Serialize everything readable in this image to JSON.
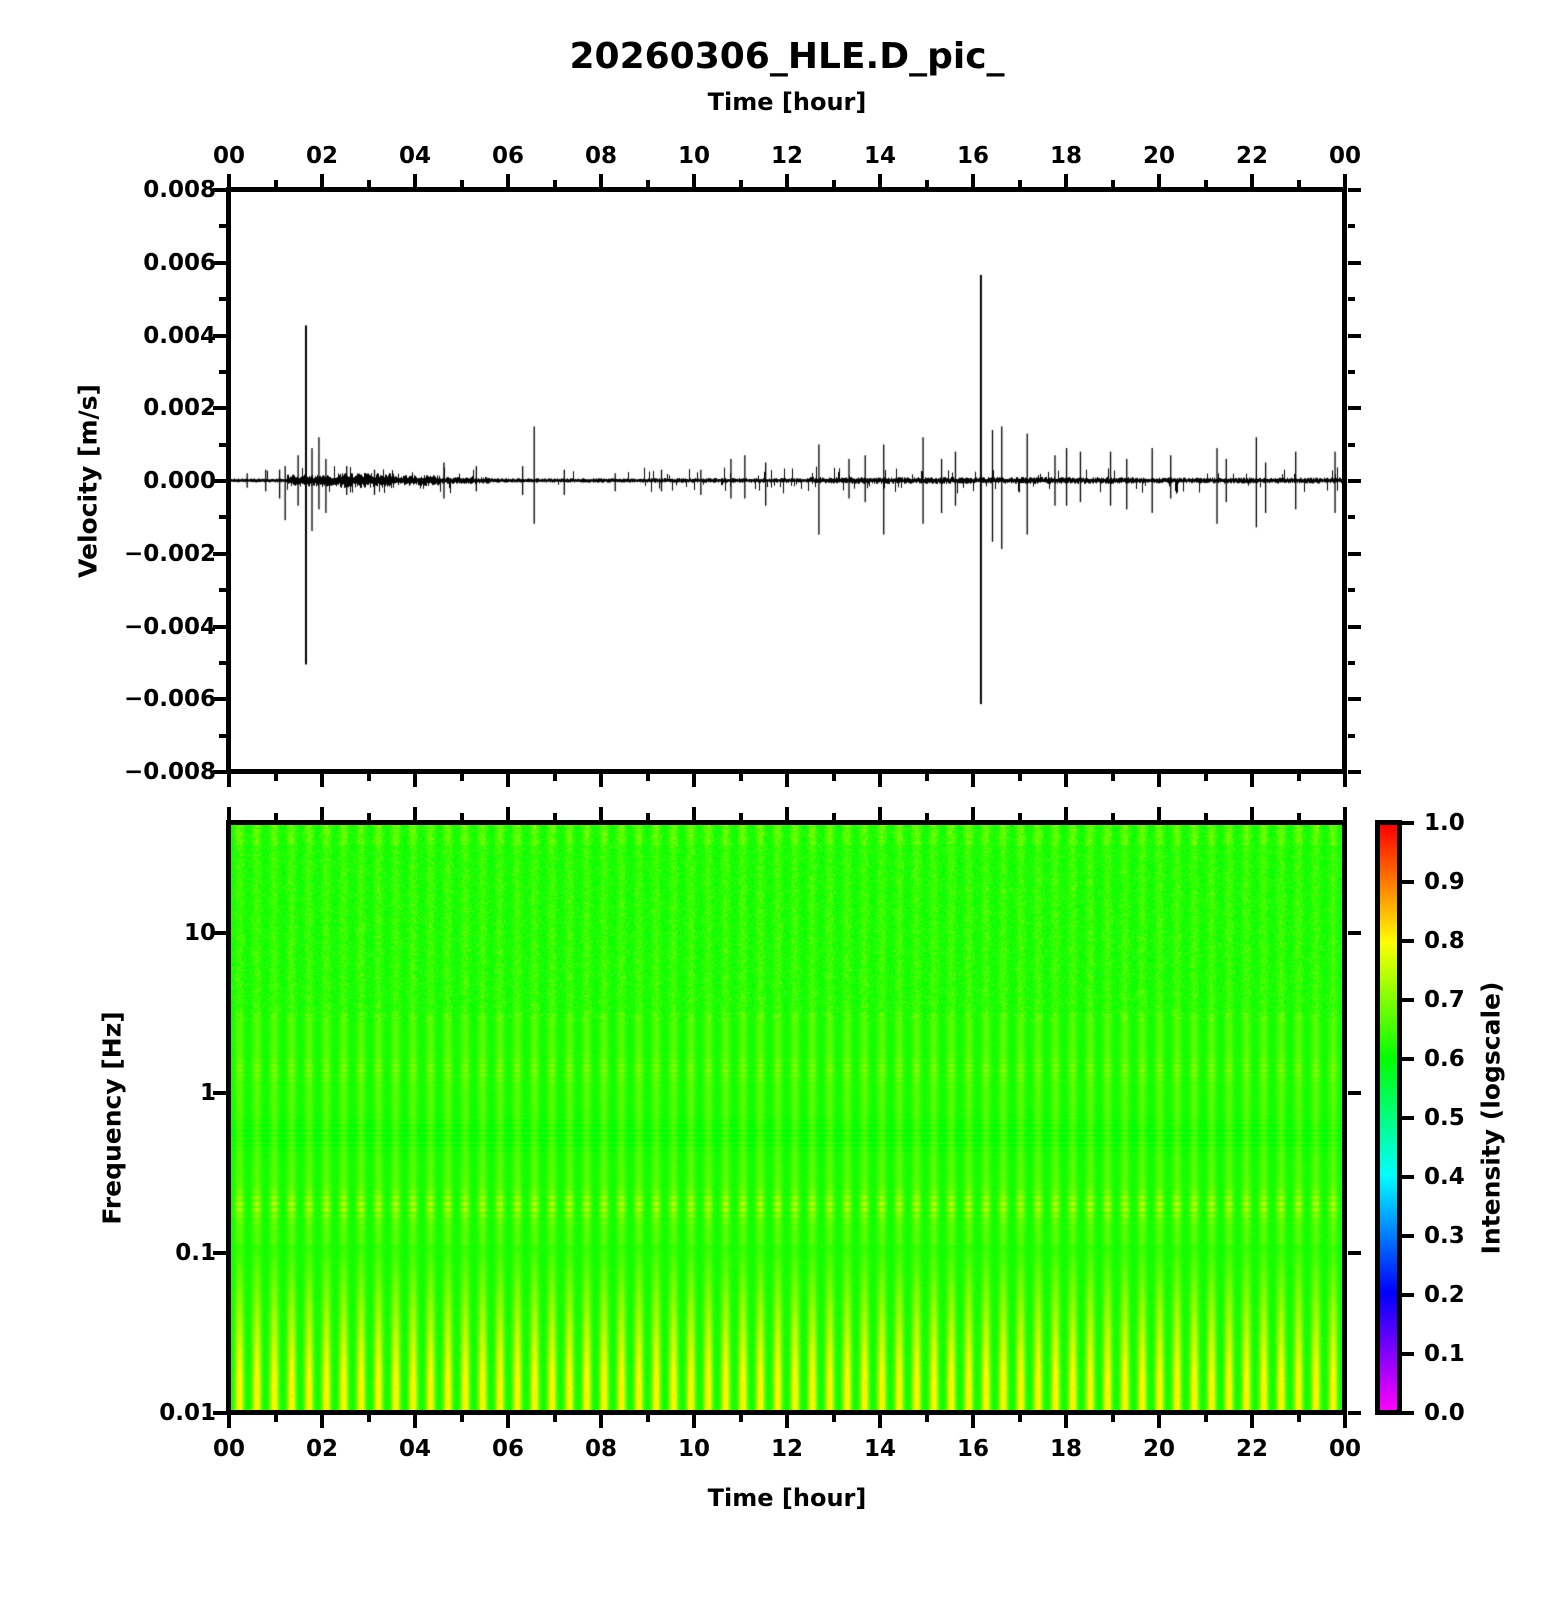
{
  "title": "20260306_HLE.D_pic_",
  "axes": {
    "top_x": {
      "label": "Time [hour]",
      "tick_labels": [
        "00",
        "02",
        "04",
        "06",
        "08",
        "10",
        "12",
        "14",
        "16",
        "18",
        "20",
        "22",
        "00"
      ],
      "tick_hours": [
        0,
        2,
        4,
        6,
        8,
        10,
        12,
        14,
        16,
        18,
        20,
        22,
        24
      ],
      "minor_every_hours": 1
    },
    "bottom_x": {
      "label": "Time [hour]",
      "tick_labels": [
        "00",
        "02",
        "04",
        "06",
        "08",
        "10",
        "12",
        "14",
        "16",
        "18",
        "20",
        "22",
        "00"
      ],
      "tick_hours": [
        0,
        2,
        4,
        6,
        8,
        10,
        12,
        14,
        16,
        18,
        20,
        22,
        24
      ],
      "minor_every_hours": 1
    },
    "wave_y": {
      "label": "Velocity [m/s]",
      "tick_labels": [
        "0.008",
        "0.006",
        "0.004",
        "0.002",
        "0.000",
        "−0.002",
        "−0.004",
        "−0.006",
        "−0.008"
      ],
      "tick_values": [
        0.008,
        0.006,
        0.004,
        0.002,
        0.0,
        -0.002,
        -0.004,
        -0.006,
        -0.008
      ],
      "minor_step": 0.001
    },
    "spec_y": {
      "label": "Frequency [Hz]",
      "tick_labels": [
        "10",
        "1",
        "0.1",
        "0.01"
      ],
      "tick_values_hz": [
        10,
        1,
        0.1,
        0.01
      ],
      "scale": "log"
    }
  },
  "colorbar": {
    "label": "Intensity (logscale)",
    "tick_labels": [
      "1.0",
      "0.9",
      "0.8",
      "0.7",
      "0.6",
      "0.5",
      "0.4",
      "0.3",
      "0.2",
      "0.1",
      "0.0"
    ],
    "tick_values": [
      1.0,
      0.9,
      0.8,
      0.7,
      0.6,
      0.5,
      0.4,
      0.3,
      0.2,
      0.1,
      0.0
    ],
    "min": 0.0,
    "max": 1.0,
    "colormap": "rainbow",
    "colormap_stops": {
      "0.0": "#ff00ff",
      "0.2": "#0000ff",
      "0.4": "#00ffff",
      "0.6": "#00ff00",
      "0.8": "#ffff00",
      "1.0": "#ff0000"
    }
  },
  "chart_data": [
    {
      "type": "line",
      "name": "seismic-waveform",
      "title": "20260306_HLE.D_pic_",
      "xlabel": "Time [hour]",
      "ylabel": "Velocity [m/s]",
      "xlim": [
        0,
        24
      ],
      "ylim": [
        -0.008,
        0.008
      ],
      "x_tick_step_hours": 2,
      "line_color": "#000000",
      "baseline_noise_mps": 3e-05,
      "noise_envelope_segments_h_h_amp": [
        [
          0.0,
          1.2,
          4e-05
        ],
        [
          1.2,
          2.3,
          0.00012
        ],
        [
          2.3,
          3.5,
          0.00015
        ],
        [
          3.5,
          4.5,
          0.00011
        ],
        [
          4.5,
          5.6,
          7e-05
        ],
        [
          5.6,
          9.0,
          4.5e-05
        ],
        [
          9.0,
          12.5,
          5e-05
        ],
        [
          12.5,
          19.5,
          7e-05
        ],
        [
          19.5,
          24.0,
          6e-05
        ]
      ],
      "spikes_hour_up_down_mps": [
        [
          0.35,
          0.0002,
          0.0002
        ],
        [
          0.75,
          0.0003,
          0.0003
        ],
        [
          1.05,
          0.0003,
          0.0005
        ],
        [
          1.17,
          0.0004,
          0.0011
        ],
        [
          1.45,
          0.0007,
          0.0007
        ],
        [
          1.62,
          0.0043,
          0.0051
        ],
        [
          1.75,
          0.0009,
          0.0014
        ],
        [
          1.9,
          0.0012,
          0.0008
        ],
        [
          2.05,
          0.0006,
          0.0009
        ],
        [
          2.5,
          0.0004,
          0.0004
        ],
        [
          3.1,
          0.0003,
          0.0004
        ],
        [
          4.6,
          0.0005,
          0.0005
        ],
        [
          5.3,
          0.0004,
          0.0003
        ],
        [
          6.3,
          0.0004,
          0.0004
        ],
        [
          6.55,
          0.0015,
          0.0012
        ],
        [
          7.2,
          0.0003,
          0.0004
        ],
        [
          8.3,
          0.0002,
          0.0003
        ],
        [
          9.3,
          0.0003,
          0.0003
        ],
        [
          10.15,
          0.0003,
          0.0004
        ],
        [
          10.8,
          0.0006,
          0.0005
        ],
        [
          11.1,
          0.0007,
          0.0005
        ],
        [
          11.55,
          0.0005,
          0.0007
        ],
        [
          12.7,
          0.001,
          0.0015
        ],
        [
          13.35,
          0.0006,
          0.0005
        ],
        [
          13.7,
          0.0007,
          0.0006
        ],
        [
          14.1,
          0.001,
          0.0015
        ],
        [
          14.95,
          0.0012,
          0.0012
        ],
        [
          15.35,
          0.0006,
          0.0009
        ],
        [
          15.65,
          0.0008,
          0.0007
        ],
        [
          16.2,
          0.0057,
          0.0062
        ],
        [
          16.45,
          0.0014,
          0.0017
        ],
        [
          16.65,
          0.0015,
          0.0019
        ],
        [
          17.2,
          0.0013,
          0.0015
        ],
        [
          17.8,
          0.0007,
          0.0007
        ],
        [
          18.05,
          0.0009,
          0.0007
        ],
        [
          18.35,
          0.0008,
          0.0006
        ],
        [
          19.0,
          0.0008,
          0.0007
        ],
        [
          19.35,
          0.0006,
          0.0008
        ],
        [
          19.9,
          0.0009,
          0.0009
        ],
        [
          20.3,
          0.0007,
          0.0005
        ],
        [
          21.3,
          0.0009,
          0.0012
        ],
        [
          21.5,
          0.0006,
          0.0006
        ],
        [
          22.15,
          0.0012,
          0.0013
        ],
        [
          22.35,
          0.0005,
          0.0009
        ],
        [
          23.0,
          0.0008,
          0.0008
        ],
        [
          23.85,
          0.0008,
          0.0009
        ]
      ]
    },
    {
      "type": "heatmap",
      "name": "spectrogram",
      "xlabel": "Time [hour]",
      "ylabel": "Frequency [Hz]",
      "xlim": [
        0,
        24
      ],
      "ylim_hz": [
        0.01,
        47
      ],
      "yscale": "log",
      "intensity_label": "Intensity (logscale)",
      "intensity_range": [
        0.0,
        1.0
      ],
      "base_intensity": 0.615,
      "stripe_period_hours": 0.375,
      "stripe_count": 64,
      "features": {
        "low_freq_stripe_boost_below_hz": 0.1,
        "low_freq_stripe_boost": 0.17,
        "dotted_band_hz": 0.2,
        "dotted_band_boost": 0.1,
        "mid_band_stripe_boost": 0.025,
        "faint_band_hz": 1.4,
        "faint_band_boost": 0.05,
        "dark_band_hz": 0.55,
        "dark_band_drop": 0.03,
        "high_freq_speckle": 0.045
      },
      "colormap": "rainbow"
    }
  ]
}
